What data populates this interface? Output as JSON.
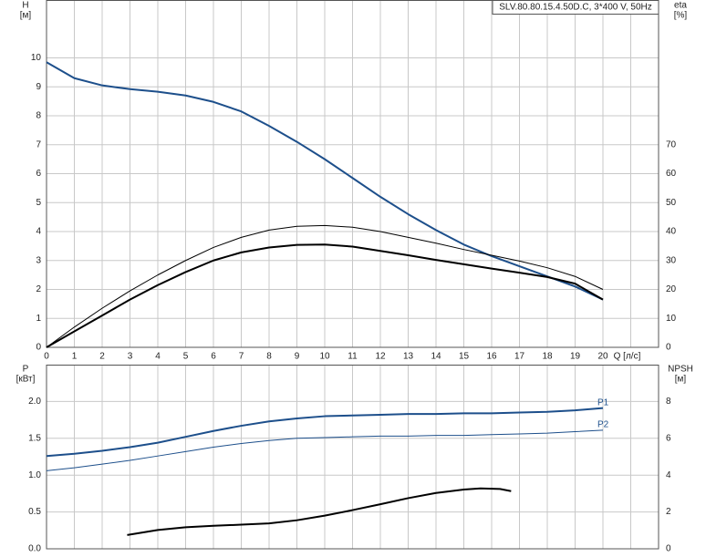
{
  "chart_data": [
    {
      "type": "line",
      "title": "SLV.80.80.15.4.50D.C, 3*400 V, 50Hz",
      "y_label": "H",
      "y_unit": "[м]",
      "y2_label": "eta",
      "y2_unit": "[%]",
      "x_label": "Q [л/с]",
      "xlim": [
        0,
        22
      ],
      "xticks": [
        0,
        1,
        2,
        3,
        4,
        5,
        6,
        7,
        8,
        9,
        10,
        11,
        12,
        13,
        14,
        15,
        16,
        17,
        18,
        19,
        20
      ],
      "ylim": [
        0,
        12
      ],
      "yticks": [
        0,
        1,
        2,
        3,
        4,
        5,
        6,
        7,
        8,
        9,
        10
      ],
      "y2lim": [
        0,
        120
      ],
      "y2ticks": [
        0,
        10,
        20,
        30,
        40,
        50,
        60,
        70
      ],
      "grid": true,
      "series": [
        {
          "color": "#1d4f8b",
          "line_width": 2,
          "x": [
            0,
            1,
            2,
            3,
            4,
            5,
            6,
            7,
            8,
            9,
            10,
            11,
            12,
            13,
            14,
            15,
            16,
            17,
            18,
            19,
            20
          ],
          "values": [
            9.85,
            9.3,
            9.05,
            8.92,
            8.83,
            8.7,
            8.48,
            8.15,
            7.65,
            7.1,
            6.5,
            5.85,
            5.2,
            4.6,
            4.05,
            3.55,
            3.15,
            2.8,
            2.45,
            2.1,
            1.65
          ]
        },
        {
          "color": "#000000",
          "line_width": 1,
          "axis": "y2",
          "x": [
            0,
            1,
            2,
            3,
            4,
            5,
            6,
            7,
            8,
            9,
            10,
            11,
            12,
            13,
            14,
            15,
            16,
            17,
            18,
            19,
            20
          ],
          "values": [
            0,
            7,
            13.5,
            19.5,
            25,
            30,
            34.5,
            38,
            40.5,
            41.8,
            42.1,
            41.5,
            40,
            38,
            36,
            33.8,
            31.8,
            29.8,
            27.5,
            24.5,
            20
          ]
        },
        {
          "color": "#000000",
          "line_width": 2,
          "axis": "y2",
          "x": [
            0,
            1,
            2,
            3,
            4,
            5,
            6,
            7,
            8,
            9,
            10,
            11,
            12,
            13,
            14,
            15,
            16,
            17,
            18,
            19,
            20
          ],
          "values": [
            0,
            5.5,
            11,
            16.5,
            21.5,
            26,
            30,
            32.8,
            34.5,
            35.4,
            35.5,
            34.8,
            33.3,
            31.8,
            30.2,
            28.7,
            27.2,
            25.8,
            24.3,
            22,
            16.5
          ]
        }
      ]
    },
    {
      "type": "line",
      "y_label": "P",
      "y_unit": "[кВт]",
      "y2_label": "NPSH",
      "y2_unit": "[м]",
      "xlim": [
        0,
        22
      ],
      "ylim": [
        0,
        2.5
      ],
      "yticks": [
        {
          "value": 0,
          "label": "0.0"
        },
        0.5,
        {
          "value": 1,
          "label": "1.0"
        },
        1.5,
        {
          "value": 2,
          "label": "2.0"
        }
      ],
      "y2lim": [
        0,
        10
      ],
      "y2ticks": [
        0,
        2,
        4,
        6,
        8
      ],
      "grid": true,
      "series": [
        {
          "name": "P1",
          "color": "#1d4f8b",
          "line_width": 2,
          "x": [
            0,
            1,
            2,
            3,
            4,
            5,
            6,
            7,
            8,
            9,
            10,
            11,
            12,
            13,
            14,
            15,
            16,
            17,
            18,
            19,
            20
          ],
          "values": [
            1.26,
            1.29,
            1.33,
            1.38,
            1.44,
            1.52,
            1.6,
            1.67,
            1.73,
            1.77,
            1.8,
            1.81,
            1.82,
            1.83,
            1.83,
            1.84,
            1.84,
            1.85,
            1.86,
            1.88,
            1.91
          ]
        },
        {
          "name": "P2",
          "color": "#1d4f8b",
          "line_width": 1,
          "x": [
            0,
            1,
            2,
            3,
            4,
            5,
            6,
            7,
            8,
            9,
            10,
            11,
            12,
            13,
            14,
            15,
            16,
            17,
            18,
            19,
            20
          ],
          "values": [
            1.06,
            1.1,
            1.15,
            1.2,
            1.26,
            1.32,
            1.38,
            1.43,
            1.47,
            1.5,
            1.51,
            1.52,
            1.53,
            1.53,
            1.54,
            1.54,
            1.55,
            1.56,
            1.57,
            1.59,
            1.61
          ]
        },
        {
          "color": "#000000",
          "line_width": 2,
          "axis": "y2",
          "x": [
            2.9,
            4,
            5,
            6,
            7,
            8,
            9,
            10,
            11,
            12,
            13,
            14,
            15,
            15.6,
            16.3,
            16.7
          ],
          "values": [
            0.75,
            1.02,
            1.17,
            1.25,
            1.31,
            1.38,
            1.55,
            1.8,
            2.1,
            2.42,
            2.75,
            3.03,
            3.22,
            3.28,
            3.25,
            3.13
          ]
        }
      ]
    }
  ]
}
